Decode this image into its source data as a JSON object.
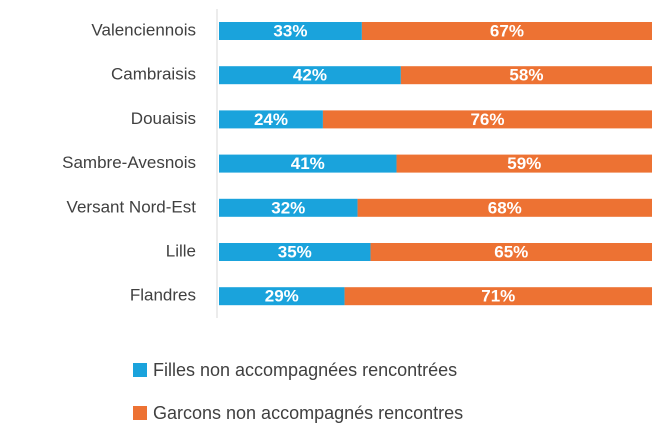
{
  "chart_data": {
    "type": "bar",
    "orientation": "horizontal",
    "stacked": true,
    "categories": [
      "Valenciennois",
      "Cambraisis",
      "Douaisis",
      "Sambre-Avesnois",
      "Versant Nord-Est",
      "Lille",
      "Flandres"
    ],
    "series": [
      {
        "name": "Filles non accompagnées rencontrées",
        "color": "#1aa3dc",
        "values": [
          33,
          42,
          24,
          41,
          32,
          35,
          29
        ],
        "value_labels": [
          "33%",
          "42%",
          "24%",
          "41%",
          "32%",
          "35%",
          "29%"
        ]
      },
      {
        "name": "Garcons non accompagnés rencontres",
        "color": "#ed7233",
        "values": [
          67,
          58,
          76,
          59,
          68,
          65,
          71
        ],
        "value_labels": [
          "67%",
          "58%",
          "76%",
          "59%",
          "68%",
          "65%",
          "71%"
        ]
      }
    ],
    "xlim": [
      0,
      100
    ],
    "legend": "bottom"
  }
}
